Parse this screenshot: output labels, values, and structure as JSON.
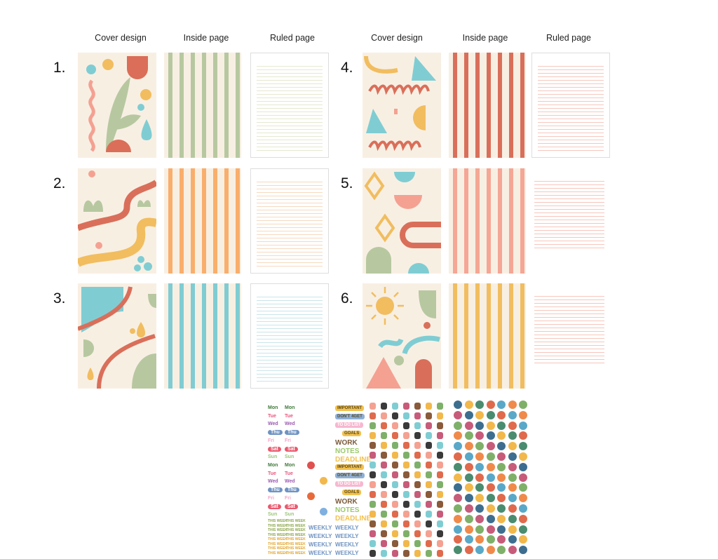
{
  "headers": {
    "cover": "Cover design",
    "inside": "Inside page",
    "ruled": "Ruled page"
  },
  "designs": [
    {
      "number": "1.",
      "stripe": "#b7c8a0",
      "rule": "#e6e8cf",
      "border": true
    },
    {
      "number": "2.",
      "stripe": "#f9ae6c",
      "rule": "#f7d9bf",
      "border": true
    },
    {
      "number": "3.",
      "stripe": "#80ccd3",
      "rule": "#c9e5ea",
      "border": true
    },
    {
      "number": "4.",
      "stripe": "#d96f5a",
      "rule": "#f6c7bd",
      "border": true
    },
    {
      "number": "5.",
      "stripe": "#f5a695",
      "rule": "#f8c5bb",
      "border": false
    },
    {
      "number": "6.",
      "stripe": "#f1bd5f",
      "rule": "#f7c6bb",
      "border": false
    }
  ],
  "stickers": {
    "days": [
      "Mon",
      "Tue",
      "Wed",
      "Thu",
      "Fri",
      "Sat",
      "Sun"
    ],
    "day_colors": [
      "#3f7a3a",
      "#e8587e",
      "#9a5ab0",
      "#6f93c2",
      "#f4a6c8",
      "#e95a6e",
      "#9cc47a"
    ],
    "labels": [
      "IMPORTANT",
      "DON'T 4GET",
      "TO DO LIST",
      "GOALS",
      "WORK",
      "NOTES",
      "DEADLINE"
    ],
    "label_colors": [
      "#f2c14e",
      "#8fb0d6",
      "#f7b7cf",
      "#f2c14e",
      "#7a5a3a",
      "#9cc96a",
      "#f2c14e"
    ],
    "this_week": "THIS WEEK",
    "weekly": "WEEKLY",
    "circle_colors": [
      "#3d6e8f",
      "#e06a4c",
      "#7fb069",
      "#f2b84b",
      "#59a8c8",
      "#c75b7a",
      "#4a8c6f",
      "#f08a4b"
    ]
  }
}
